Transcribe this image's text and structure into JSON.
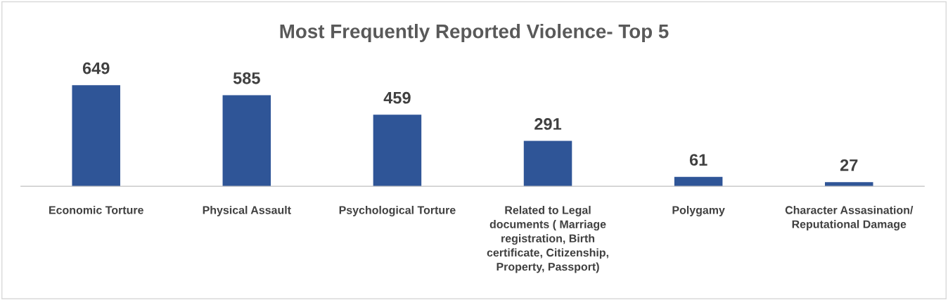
{
  "chart_data": {
    "type": "bar",
    "title": "Most Frequently Reported Violence- Top 5",
    "categories": [
      "Economic Torture",
      "Physical Assault",
      "Psychological Torture",
      "Related to Legal\ndocuments ( Marriage\nregistration, Birth\ncertificate, Citizenship,\nProperty, Passport)",
      "Polygamy",
      "Character Assasination/\nReputational Damage"
    ],
    "values": [
      649,
      585,
      459,
      291,
      61,
      27
    ],
    "color": "#2f5597",
    "data_labels": true,
    "grid": false,
    "legend": false
  }
}
